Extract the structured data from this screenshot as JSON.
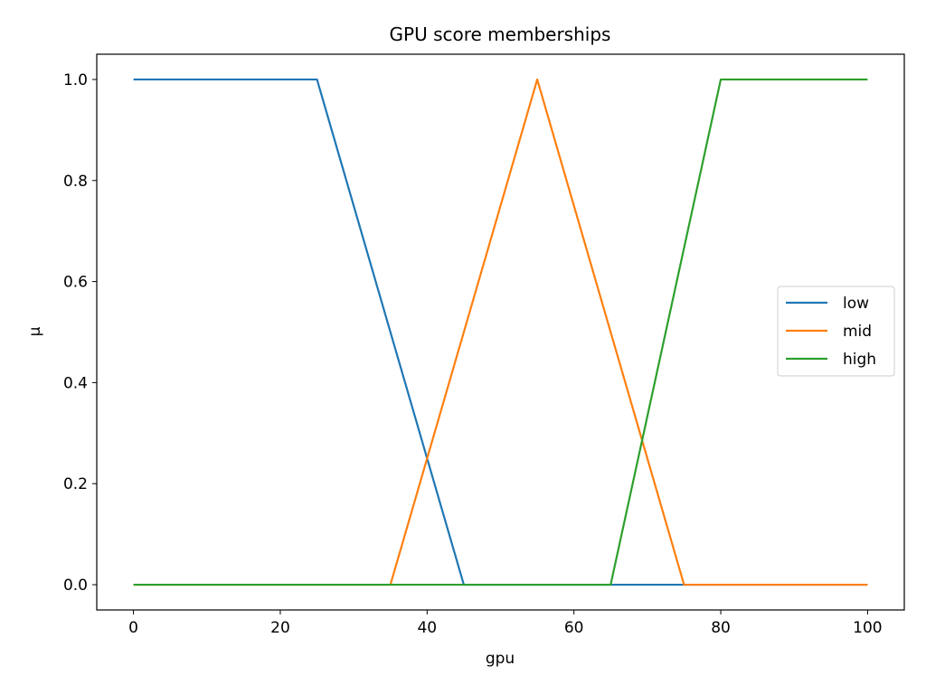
{
  "chart_data": {
    "type": "line",
    "title": "GPU score memberships",
    "xlabel": "gpu",
    "ylabel": "μ",
    "xlim": [
      -5,
      105
    ],
    "ylim": [
      -0.05,
      1.05
    ],
    "xticks": [
      0,
      20,
      40,
      60,
      80,
      100
    ],
    "yticks": [
      0.0,
      0.2,
      0.4,
      0.6,
      0.8,
      1.0
    ],
    "xtick_labels": [
      "0",
      "20",
      "40",
      "60",
      "80",
      "100"
    ],
    "ytick_labels": [
      "0.0",
      "0.2",
      "0.4",
      "0.6",
      "0.8",
      "1.0"
    ],
    "grid": false,
    "legend_position": "center-right",
    "series": [
      {
        "name": "low",
        "color": "#1f77b4",
        "x": [
          0,
          25,
          45,
          100
        ],
        "y": [
          1,
          1,
          0,
          0
        ]
      },
      {
        "name": "mid",
        "color": "#ff7f0e",
        "x": [
          0,
          35,
          55,
          75,
          100
        ],
        "y": [
          0,
          0,
          1,
          0,
          0
        ]
      },
      {
        "name": "high",
        "color": "#2ca02c",
        "x": [
          0,
          65,
          80,
          100
        ],
        "y": [
          0,
          0,
          1,
          1
        ]
      }
    ]
  }
}
